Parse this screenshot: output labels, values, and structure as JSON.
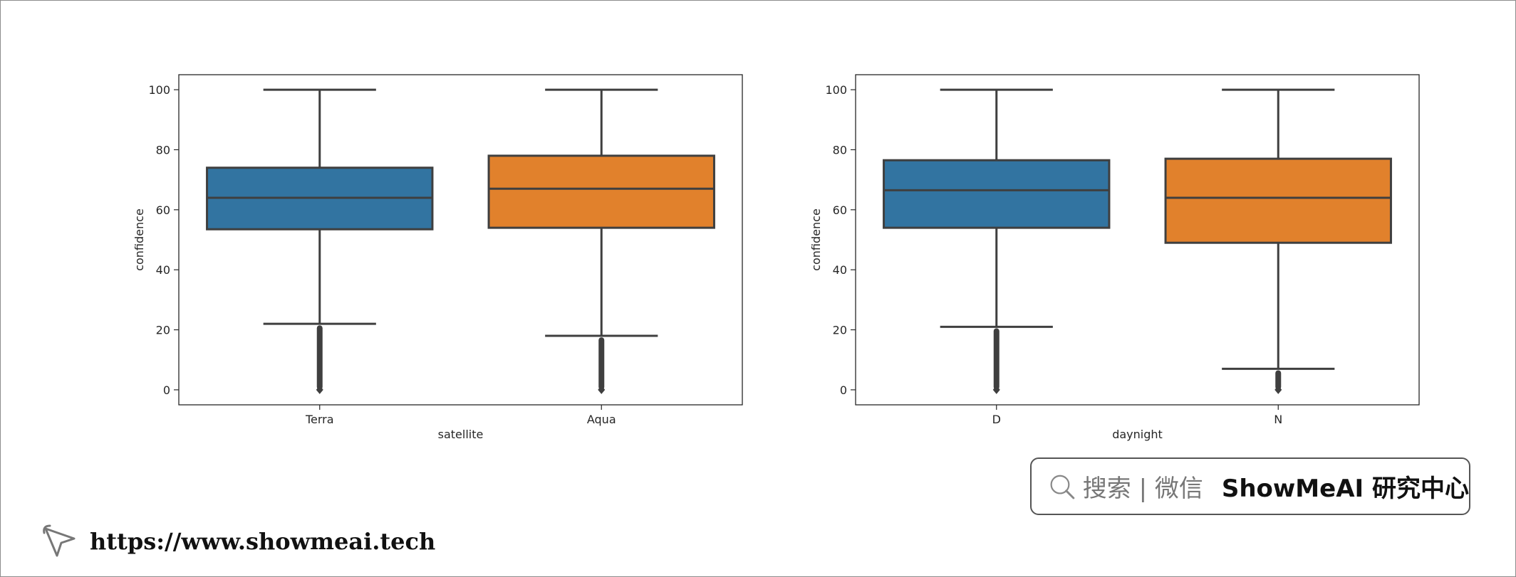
{
  "chart_data": [
    {
      "type": "box",
      "xlabel": "satellite",
      "ylabel": "confidence",
      "ylim": [
        -5,
        105
      ],
      "yticks": [
        0,
        20,
        40,
        60,
        80,
        100
      ],
      "categories": [
        "Terra",
        "Aqua"
      ],
      "boxes": [
        {
          "category": "Terra",
          "color": "#3274a1",
          "whisker_low": 22,
          "q1": 53.5,
          "median": 64,
          "q3": 74,
          "whisker_high": 100,
          "outliers_min": 0,
          "outliers_max": 21.5
        },
        {
          "category": "Aqua",
          "color": "#e1812c",
          "whisker_low": 18,
          "q1": 54,
          "median": 67,
          "q3": 78,
          "whisker_high": 100,
          "outliers_min": 0,
          "outliers_max": 17.5
        }
      ]
    },
    {
      "type": "box",
      "xlabel": "daynight",
      "ylabel": "confidence",
      "ylim": [
        -5,
        105
      ],
      "yticks": [
        0,
        20,
        40,
        60,
        80,
        100
      ],
      "categories": [
        "D",
        "N"
      ],
      "boxes": [
        {
          "category": "D",
          "color": "#3274a1",
          "whisker_low": 21,
          "q1": 54,
          "median": 66.5,
          "q3": 76.5,
          "whisker_high": 100,
          "outliers_min": 0,
          "outliers_max": 20.5
        },
        {
          "category": "N",
          "color": "#e1812c",
          "whisker_low": 7,
          "q1": 49,
          "median": 64,
          "q3": 77,
          "whisker_high": 100,
          "outliers_min": 0,
          "outliers_max": 6.5
        }
      ]
    }
  ],
  "search_box": {
    "prompt": "搜索 | 微信",
    "brand": "ShowMeAI 研究中心",
    "icon": "search-icon"
  },
  "footer": {
    "url": "https://www.showmeai.tech",
    "icon": "cursor-pointer-icon"
  }
}
